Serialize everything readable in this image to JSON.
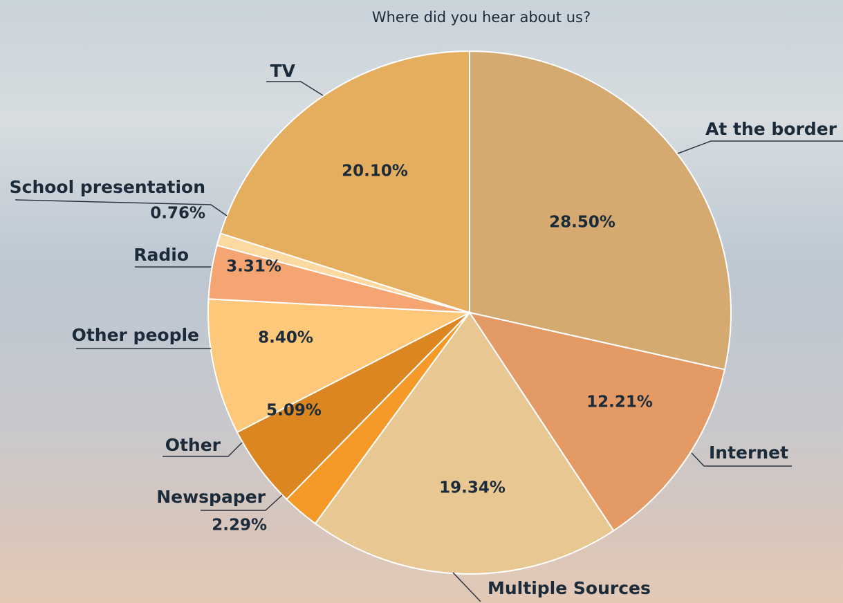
{
  "chart_data": {
    "type": "pie",
    "title": "Where did you hear about us?",
    "categories": [
      "At the border",
      "Internet",
      "Multiple Sources",
      "Newspaper",
      "Other",
      "Other people",
      "Radio",
      "School presentation",
      "TV"
    ],
    "values": [
      28.5,
      12.21,
      19.34,
      2.29,
      5.09,
      8.4,
      3.31,
      0.76,
      20.1
    ],
    "value_labels": [
      "28.50%",
      "12.21%",
      "19.34%",
      "2.29%",
      "5.09%",
      "8.40%",
      "3.31%",
      "0.76%",
      "20.10%"
    ],
    "colors": [
      "#d4aa70",
      "#e39a65",
      "#e8c793",
      "#f59a28",
      "#dc8621",
      "#fdc87a",
      "#f5a571",
      "#fcd9a0",
      "#e5ad5e"
    ]
  }
}
